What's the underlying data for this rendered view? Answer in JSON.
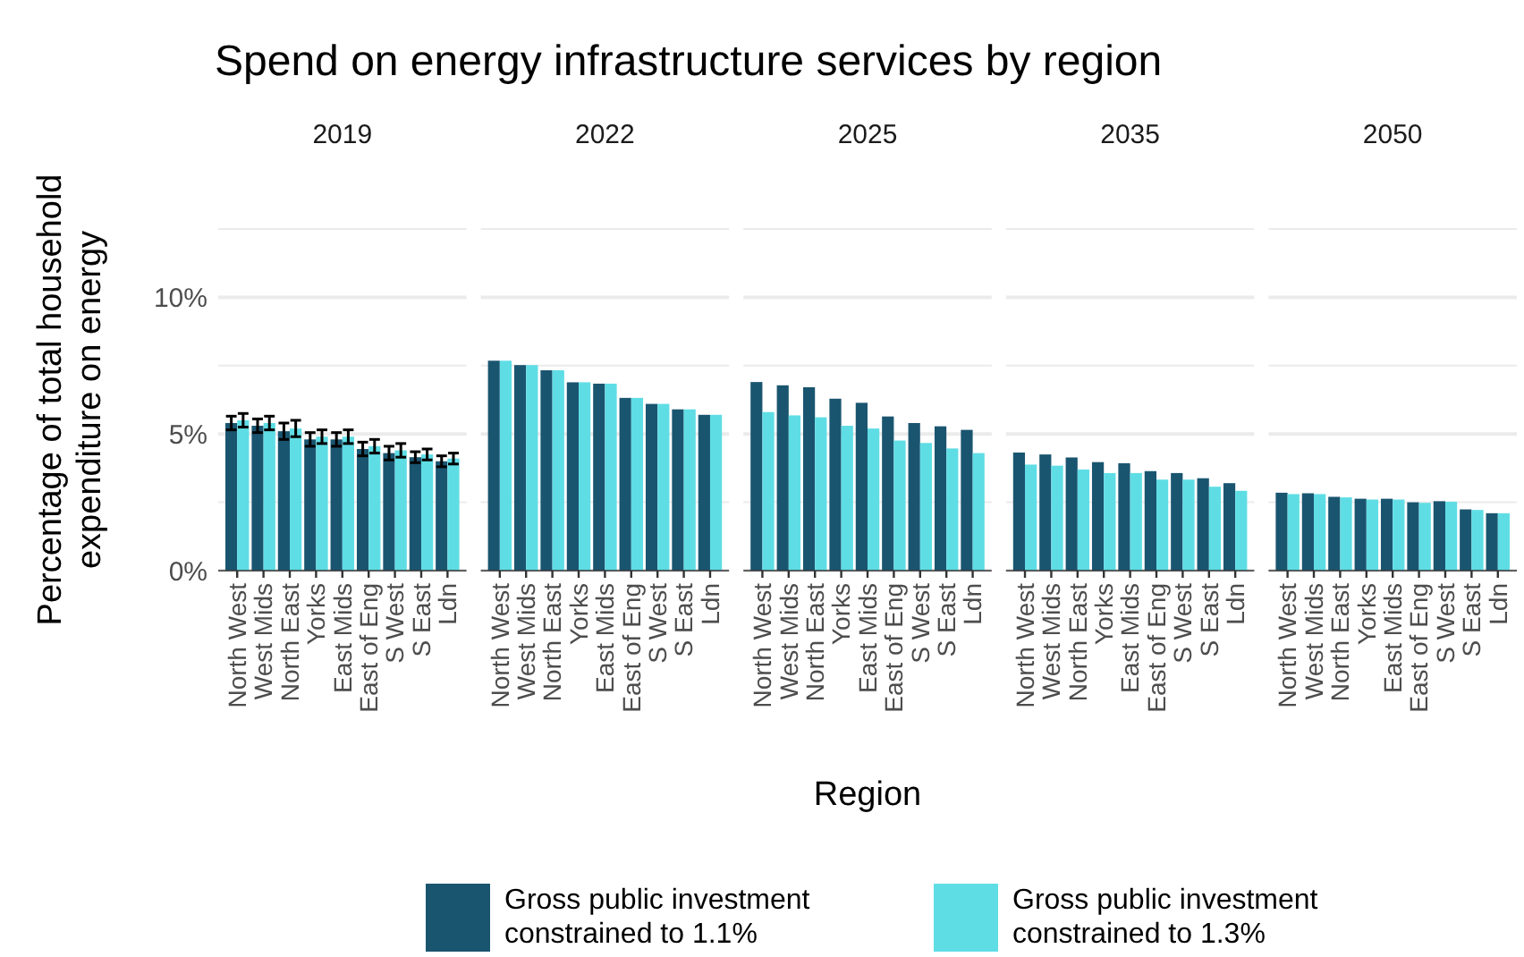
{
  "chart_data": [
    {
      "type": "bar",
      "title": "Spend on energy infrastructure services by region",
      "subtitle": "2019",
      "ylabel": "Percentage of total household expenditure on energy",
      "legend": "bottom",
      "grid": "y",
      "categories": [
        "North West",
        "West Mids",
        "North East",
        "Yorks",
        "East Mids",
        "East of Eng",
        "S West",
        "S East",
        "Ldn"
      ],
      "series": [
        {
          "name": "Gross public investment constrained to 1.1%",
          "color": "#1a5570",
          "values": [
            5.4,
            5.3,
            5.1,
            4.8,
            4.8,
            4.45,
            4.3,
            4.15,
            4.0
          ],
          "errors": [
            0.25,
            0.25,
            0.3,
            0.25,
            0.25,
            0.25,
            0.25,
            0.2,
            0.2
          ]
        },
        {
          "name": "Gross public investment constrained to 1.3%",
          "color": "#5fdde5",
          "values": [
            5.5,
            5.4,
            5.2,
            4.9,
            4.9,
            4.55,
            4.4,
            4.25,
            4.1
          ],
          "errors": [
            0.25,
            0.25,
            0.3,
            0.25,
            0.25,
            0.25,
            0.25,
            0.2,
            0.2
          ]
        }
      ],
      "ylim": [
        0,
        12.5
      ],
      "yticks": [
        {
          "value": 0,
          "label": "0%"
        },
        {
          "value": 2.5,
          "label": null
        },
        {
          "value": 5,
          "label": "5%"
        },
        {
          "value": 7.5,
          "label": null
        },
        {
          "value": 10,
          "label": "10%"
        },
        {
          "value": 12.5,
          "label": null
        }
      ]
    },
    {
      "type": "bar",
      "subtitle": "2022",
      "grid": "y",
      "tick_labels": "x",
      "ylim": [
        0,
        12.5
      ],
      "yticks": [
        {
          "value": 0,
          "label": null
        },
        {
          "value": 2.5,
          "label": null
        },
        {
          "value": 5,
          "label": null
        },
        {
          "value": 7.5,
          "label": null
        },
        {
          "value": 10,
          "label": null
        },
        {
          "value": 12.5,
          "label": null
        }
      ],
      "categories": [
        "North West",
        "West Mids",
        "North East",
        "Yorks",
        "East Mids",
        "East of Eng",
        "S West",
        "S East",
        "Ldn"
      ],
      "series": [
        {
          "color": "#1a5570",
          "values": [
            7.68,
            7.52,
            7.33,
            6.89,
            6.84,
            6.32,
            6.1,
            5.9,
            5.7
          ]
        },
        {
          "color": "#5fdde5",
          "values": [
            7.68,
            7.52,
            7.33,
            6.89,
            6.84,
            6.32,
            6.1,
            5.9,
            5.7
          ]
        }
      ]
    },
    {
      "type": "bar",
      "subtitle": "2025",
      "xlabel": "Region",
      "grid": "y",
      "tick_labels": "x",
      "ylim": [
        0,
        12.5
      ],
      "yticks": [
        {
          "value": 0,
          "label": null
        },
        {
          "value": 2.5,
          "label": null
        },
        {
          "value": 5,
          "label": null
        },
        {
          "value": 7.5,
          "label": null
        },
        {
          "value": 10,
          "label": null
        },
        {
          "value": 12.5,
          "label": null
        }
      ],
      "categories": [
        "North West",
        "West Mids",
        "North East",
        "Yorks",
        "East Mids",
        "East of Eng",
        "S West",
        "S East",
        "Ldn"
      ],
      "series": [
        {
          "color": "#1a5570",
          "values": [
            6.9,
            6.78,
            6.71,
            6.29,
            6.14,
            5.64,
            5.4,
            5.28,
            5.15
          ]
        },
        {
          "color": "#5fdde5",
          "values": [
            5.8,
            5.68,
            5.61,
            5.3,
            5.2,
            4.76,
            4.67,
            4.47,
            4.3
          ]
        }
      ]
    },
    {
      "type": "bar",
      "subtitle": "2035",
      "grid": "y",
      "tick_labels": "x",
      "ylim": [
        0,
        12.5
      ],
      "yticks": [
        {
          "value": 0,
          "label": null
        },
        {
          "value": 2.5,
          "label": null
        },
        {
          "value": 5,
          "label": null
        },
        {
          "value": 7.5,
          "label": null
        },
        {
          "value": 10,
          "label": null
        },
        {
          "value": 12.5,
          "label": null
        }
      ],
      "categories": [
        "North West",
        "West Mids",
        "North East",
        "Yorks",
        "East Mids",
        "East of Eng",
        "S West",
        "S East",
        "Ldn"
      ],
      "series": [
        {
          "color": "#1a5570",
          "values": [
            4.32,
            4.25,
            4.14,
            3.97,
            3.93,
            3.64,
            3.57,
            3.38,
            3.2
          ]
        },
        {
          "color": "#5fdde5",
          "values": [
            3.88,
            3.84,
            3.7,
            3.57,
            3.57,
            3.33,
            3.33,
            3.07,
            2.92
          ]
        }
      ]
    },
    {
      "type": "bar",
      "subtitle": "2050",
      "grid": "y",
      "tick_labels": "x",
      "ylim": [
        0,
        12.5
      ],
      "yticks": [
        {
          "value": 0,
          "label": null
        },
        {
          "value": 2.5,
          "label": null
        },
        {
          "value": 5,
          "label": null
        },
        {
          "value": 7.5,
          "label": null
        },
        {
          "value": 10,
          "label": null
        },
        {
          "value": 12.5,
          "label": null
        }
      ],
      "categories": [
        "North West",
        "West Mids",
        "North East",
        "Yorks",
        "East Mids",
        "East of Eng",
        "S West",
        "S East",
        "Ldn"
      ],
      "series": [
        {
          "color": "#1a5570",
          "values": [
            2.85,
            2.83,
            2.7,
            2.63,
            2.63,
            2.5,
            2.54,
            2.24,
            2.1
          ]
        },
        {
          "color": "#5fdde5",
          "values": [
            2.8,
            2.8,
            2.68,
            2.6,
            2.6,
            2.48,
            2.52,
            2.22,
            2.1
          ]
        }
      ]
    }
  ]
}
